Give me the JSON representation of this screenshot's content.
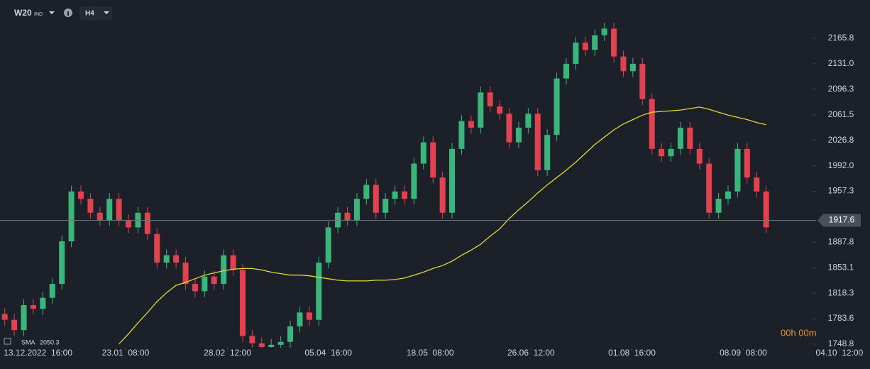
{
  "chart_data": {
    "type": "candlestick",
    "symbol": "W20",
    "symbol_type": "IND",
    "timeframe": "H4",
    "timer": "00h 00m",
    "current_price": 1917.6,
    "up_color": "#3bb57b",
    "down_color": "#e0424f",
    "ylim": [
      1744,
      2218
    ],
    "yticks": [
      1748.8,
      1783.6,
      1818.3,
      1853.1,
      1887.8,
      1957.3,
      {
        "value": 1992,
        "label": "1992.0"
      },
      2026.8,
      2061.5,
      2096.3,
      {
        "value": 2131,
        "label": "2131.0"
      },
      2165.8
    ],
    "xlim": [
      -0.5,
      84.5
    ],
    "xticks": [
      {
        "value": 3.5,
        "label": "13.12.2022  16:00"
      },
      {
        "value": 12.7,
        "label": "23.01  08:00"
      },
      {
        "value": 23.4,
        "label": "28.02  12:00"
      },
      {
        "value": 34,
        "label": "05.04  16:00"
      },
      {
        "value": 44.7,
        "label": "18.05  08:00"
      },
      {
        "value": 55.3,
        "label": "26.06  12:00"
      },
      {
        "value": 65.9,
        "label": "01.08  16:00"
      },
      {
        "value": 77.6,
        "label": "08.09  08:00"
      },
      {
        "value": 87.7,
        "label": "04.10  12:00"
      }
    ],
    "open": [
      1790,
      1782,
      1768,
      1802,
      1797,
      1812,
      1831,
      1889,
      1957,
      1947,
      1928,
      1918,
      1947,
      1918,
      1908,
      1928,
      1899,
      1860,
      1870,
      1860,
      1831,
      1821,
      1841,
      1831,
      1870,
      1850,
      1760,
      1750,
      1745,
      1748,
      1752,
      1773,
      1792,
      1782,
      1860,
      1908,
      1928,
      1918,
      1947,
      1966,
      1928,
      1947,
      1957,
      1947,
      1995,
      2024,
      1976,
      1928,
      2015,
      2053,
      2044,
      2092,
      2073,
      2063,
      2024,
      2044,
      2063,
      1986,
      2034,
      2111,
      2131,
      2160,
      2150,
      2170,
      2179,
      2141,
      2121,
      2131,
      2083,
      2015,
      2005,
      2015,
      2044,
      2015,
      1995,
      1928,
      1947,
      1957,
      2015,
      1976,
      1957
    ],
    "high": [
      1798,
      1790,
      1810,
      1810,
      1820,
      1839,
      1897,
      1965,
      1965,
      1955,
      1936,
      1955,
      1955,
      1926,
      1936,
      1936,
      1907,
      1878,
      1878,
      1868,
      1839,
      1849,
      1849,
      1878,
      1878,
      1858,
      1768,
      1758,
      1756,
      1760,
      1781,
      1800,
      1800,
      1868,
      1916,
      1936,
      1936,
      1955,
      1974,
      1974,
      1955,
      1965,
      1965,
      2003,
      2032,
      2032,
      1984,
      2023,
      2061,
      2061,
      2100,
      2100,
      2081,
      2071,
      2052,
      2071,
      2071,
      2042,
      2119,
      2139,
      2168,
      2168,
      2178,
      2187,
      2187,
      2149,
      2139,
      2139,
      2091,
      2023,
      2023,
      2052,
      2052,
      2023,
      2003,
      1955,
      1965,
      2023,
      2023,
      1984,
      1965
    ],
    "low": [
      1774,
      1760,
      1760,
      1789,
      1789,
      1804,
      1823,
      1881,
      1939,
      1920,
      1910,
      1910,
      1910,
      1900,
      1900,
      1891,
      1852,
      1852,
      1852,
      1823,
      1813,
      1813,
      1823,
      1823,
      1842,
      1752,
      1742,
      1737,
      1737,
      1740,
      1744,
      1765,
      1774,
      1774,
      1852,
      1900,
      1910,
      1910,
      1939,
      1920,
      1920,
      1939,
      1939,
      1939,
      1987,
      1968,
      1920,
      1920,
      2007,
      2036,
      2036,
      2065,
      2055,
      2016,
      2016,
      2036,
      1978,
      1978,
      2026,
      2103,
      2123,
      2142,
      2142,
      2162,
      2133,
      2113,
      2113,
      2075,
      2007,
      1997,
      1997,
      2007,
      2007,
      1987,
      1920,
      1920,
      1939,
      1949,
      1968,
      1949,
      1900
    ],
    "close": [
      1782,
      1768,
      1802,
      1797,
      1812,
      1831,
      1889,
      1957,
      1947,
      1928,
      1918,
      1947,
      1918,
      1908,
      1928,
      1899,
      1860,
      1870,
      1860,
      1831,
      1821,
      1841,
      1831,
      1870,
      1850,
      1760,
      1750,
      1745,
      1748,
      1752,
      1773,
      1792,
      1782,
      1860,
      1908,
      1928,
      1918,
      1947,
      1966,
      1928,
      1947,
      1957,
      1947,
      1995,
      2024,
      1976,
      1928,
      2015,
      2053,
      2044,
      2092,
      2073,
      2063,
      2024,
      2044,
      2063,
      1986,
      2034,
      2111,
      2131,
      2160,
      2150,
      2170,
      2179,
      2141,
      2121,
      2131,
      2083,
      2015,
      2005,
      2015,
      2044,
      2015,
      1995,
      1928,
      1947,
      1957,
      2015,
      1976,
      1957,
      1908
    ],
    "series": [
      {
        "name": "SMA",
        "color": "#e3d637",
        "legend_value": 2050.3,
        "values": [
          null,
          null,
          null,
          null,
          null,
          null,
          null,
          null,
          null,
          null,
          null,
          null,
          1749,
          1763,
          1778,
          1792,
          1807,
          1819,
          1829,
          1833,
          1838,
          1843,
          1846,
          1849,
          1851,
          1852,
          1852,
          1850,
          1847,
          1845,
          1843,
          1843,
          1842,
          1840,
          1838,
          1836,
          1835,
          1835,
          1835,
          1836,
          1836,
          1837,
          1839,
          1843,
          1847,
          1852,
          1856,
          1862,
          1870,
          1877,
          1885,
          1896,
          1906,
          1920,
          1932,
          1943,
          1955,
          1966,
          1976,
          1986,
          1997,
          2009,
          2021,
          2031,
          2041,
          2049,
          2055,
          2061,
          2065,
          2066,
          2067,
          2068,
          2070,
          2072,
          2069,
          2065,
          2061,
          2058,
          2055,
          2051,
          2048
        ]
      }
    ]
  }
}
